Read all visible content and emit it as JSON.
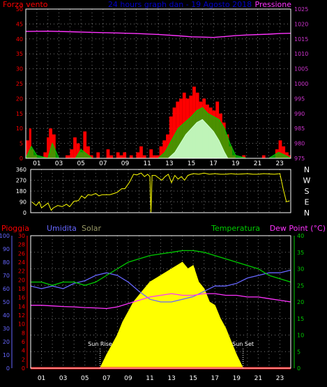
{
  "chart_data": [
    {
      "type": "line",
      "title": "24 hours graph dan - 19 Agosto 2018",
      "left_label": "Forza vento",
      "right_label": "Pressione",
      "colors": {
        "wind": "#ff0000",
        "gust": "#00cc00",
        "calm": "#ccffcc",
        "pressure": "#ff33ff"
      },
      "left_ticks": [
        "0",
        "5",
        "10",
        "15",
        "20",
        "25",
        "30",
        "35",
        "40",
        "45",
        "50"
      ],
      "right_ticks": [
        "975",
        "980",
        "985",
        "990",
        "995",
        "1000",
        "1005",
        "1010",
        "1015",
        "1020",
        "1025"
      ],
      "x_ticks": [
        "01",
        "03",
        "05",
        "07",
        "09",
        "11",
        "13",
        "15",
        "17",
        "19",
        "21",
        "23"
      ],
      "left_range": [
        0,
        50
      ],
      "right_range": [
        975,
        1025
      ],
      "hour_range": [
        0,
        24
      ],
      "series": [
        {
          "key": "wind",
          "x": [
            0,
            0.3,
            0.5,
            0.7,
            1.0,
            1.3,
            1.6,
            1.9,
            2.1,
            2.4,
            2.7,
            3.0,
            3.3,
            3.6,
            4.0,
            4.3,
            4.6,
            4.9,
            5.2,
            5.5,
            5.8,
            6.1,
            6.4,
            6.7,
            7.0,
            7.3,
            7.6,
            7.9,
            8.2,
            8.5,
            8.8,
            9.1,
            9.4,
            9.7,
            10.0,
            10.3,
            10.6,
            10.9,
            11.2,
            11.5,
            11.8,
            12.1,
            12.4,
            12.7,
            13.0,
            13.3,
            13.6,
            13.9,
            14.2,
            14.5,
            14.8,
            15.1,
            15.4,
            15.7,
            16.0,
            16.3,
            16.6,
            16.9,
            17.2,
            17.5,
            17.8,
            18.1,
            18.4,
            18.7,
            19.0,
            19.3,
            19.6,
            19.9,
            20.2,
            20.5,
            20.8,
            21.1,
            21.4,
            21.7,
            22.0,
            22.3,
            22.6,
            22.9,
            23.2,
            23.5,
            23.8,
            24.0
          ],
          "y": [
            1,
            6,
            10,
            3,
            1,
            0,
            0,
            2,
            7,
            10,
            8,
            0,
            0,
            0,
            1,
            3,
            7,
            5,
            2,
            9,
            4,
            1,
            0,
            2,
            0,
            0,
            3,
            1,
            0,
            2,
            1,
            2,
            0,
            1,
            0,
            2,
            4,
            1,
            0,
            3,
            1,
            1,
            4,
            6,
            8,
            14,
            17,
            19,
            20,
            22,
            20,
            21,
            24,
            22,
            19,
            20,
            18,
            17,
            16,
            19,
            15,
            12,
            8,
            4,
            1,
            0,
            0,
            1,
            0,
            0,
            0,
            0,
            0,
            1,
            0,
            0,
            0,
            3,
            6,
            4,
            2,
            1
          ]
        },
        {
          "key": "gust",
          "x": [
            0,
            0.5,
            1.0,
            2.0,
            2.4,
            3.0,
            4.5,
            5.0,
            6.0,
            8.0,
            10.0,
            12.0,
            12.6,
            13.2,
            13.8,
            14.4,
            15.0,
            15.5,
            16.0,
            16.5,
            17.0,
            17.5,
            18.0,
            18.5,
            19.0,
            20.0,
            22.0,
            22.9,
            23.5,
            24.0
          ],
          "y": [
            0,
            4,
            1,
            0,
            5,
            0,
            0,
            3,
            0,
            0,
            0,
            0,
            2,
            6,
            10,
            12,
            14,
            16,
            17,
            15,
            14,
            13,
            10,
            5,
            1,
            0,
            0,
            2,
            1,
            0
          ],
          "fill": true
        },
        {
          "key": "calm",
          "x": [
            0,
            12.9,
            13.5,
            14.0,
            14.5,
            15.0,
            15.5,
            16.0,
            16.5,
            17.0,
            17.5,
            18.0,
            18.3,
            24.0
          ],
          "y": [
            0,
            0,
            2,
            5,
            8,
            10,
            12,
            13,
            11,
            9,
            6,
            2,
            0,
            0
          ],
          "fill": true
        },
        {
          "key": "pressure",
          "x": [
            0,
            2,
            4,
            6,
            8,
            10,
            12,
            14,
            15,
            16,
            17,
            18,
            19,
            20,
            22,
            23,
            24
          ],
          "y": [
            1017.5,
            1017.6,
            1017.4,
            1017.2,
            1017.0,
            1016.8,
            1016.5,
            1016.0,
            1015.7,
            1015.6,
            1015.5,
            1015.8,
            1016.1,
            1016.3,
            1016.6,
            1016.8,
            1016.9
          ]
        }
      ]
    },
    {
      "type": "line",
      "title": "",
      "left_ticks": [
        "0",
        "90",
        "180",
        "270",
        "360"
      ],
      "left_range": [
        0,
        360
      ],
      "hour_range": [
        0,
        24
      ],
      "compass_labels": [
        "N",
        "W",
        "S",
        "E",
        "N"
      ],
      "colors": {
        "direction": "#ffff00"
      },
      "series": [
        {
          "key": "direction",
          "x": [
            0.1,
            0.5,
            0.8,
            1.0,
            1.3,
            1.6,
            1.9,
            2.1,
            2.5,
            2.9,
            3.3,
            3.6,
            4.0,
            4.4,
            4.7,
            5.0,
            5.3,
            5.6,
            6.0,
            6.3,
            6.6,
            7.0,
            7.3,
            7.7,
            8.0,
            8.4,
            8.7,
            9.1,
            9.5,
            9.8,
            10.2,
            10.5,
            10.8,
            11.0,
            11.1,
            11.2,
            11.5,
            11.8,
            12.1,
            12.4,
            12.7,
            13.0,
            13.3,
            13.6,
            13.9,
            14.2,
            14.5,
            14.8,
            15.1,
            15.5,
            16.0,
            16.5,
            17.0,
            17.5,
            18.0,
            18.5,
            19.0,
            19.5,
            20.0,
            20.5,
            21.0,
            21.5,
            22.0,
            22.5,
            23.0,
            23.3,
            23.6,
            23.9
          ],
          "y": [
            90,
            60,
            90,
            40,
            60,
            80,
            20,
            40,
            60,
            50,
            70,
            50,
            95,
            100,
            140,
            120,
            150,
            145,
            160,
            140,
            150,
            150,
            150,
            160,
            170,
            200,
            200,
            250,
            320,
            315,
            330,
            300,
            320,
            300,
            0,
            310,
            310,
            290,
            270,
            300,
            320,
            250,
            310,
            280,
            300,
            270,
            310,
            320,
            325,
            320,
            330,
            320,
            325,
            320,
            320,
            325,
            320,
            322,
            325,
            320,
            320,
            325,
            322,
            320,
            325,
            200,
            90,
            100
          ]
        }
      ]
    },
    {
      "type": "area",
      "labels": {
        "rain": "Pioggia",
        "humidity": "Umidita",
        "solar": "Solar",
        "temperature": "Temperatura",
        "dewpoint": "Dew Point (°C)",
        "sunrise": "Sun Rise",
        "sunset": "Sun Set"
      },
      "colors": {
        "rain": "#ff0000",
        "humidity": "#6666ff",
        "solar": "#ffff00",
        "solar_label": "#999966",
        "temperature": "#00cc00",
        "dewpoint": "#ff33ff"
      },
      "rain_ticks": [
        "0",
        "2",
        "4",
        "6",
        "8",
        "10",
        "12",
        "14",
        "16",
        "18",
        "20",
        "22",
        "24",
        "26",
        "28",
        "30"
      ],
      "humidity_ticks": [
        "0",
        "10",
        "20",
        "30",
        "40",
        "50",
        "60",
        "70",
        "80",
        "90",
        "100"
      ],
      "temp_ticks": [
        "0",
        "5",
        "10",
        "15",
        "20",
        "25",
        "30",
        "35",
        "40"
      ],
      "x_ticks": [
        "01",
        "03",
        "05",
        "07",
        "09",
        "11",
        "13",
        "15",
        "17",
        "19",
        "21",
        "23"
      ],
      "rain_range": [
        0,
        30
      ],
      "humidity_range": [
        0,
        100
      ],
      "temp_range": [
        0,
        40
      ],
      "hour_range": [
        0,
        24
      ],
      "sunrise_hour": 6.4,
      "sunset_hour": 19.6,
      "series": [
        {
          "key": "humidity",
          "x": [
            0,
            1,
            2,
            3,
            4,
            5,
            6,
            7,
            8,
            9,
            10,
            11,
            12,
            13,
            14,
            15,
            16,
            17,
            18,
            19,
            20,
            21,
            22,
            23,
            24
          ],
          "y": [
            62,
            60,
            62,
            60,
            64,
            66,
            70,
            72,
            70,
            65,
            58,
            52,
            50,
            50,
            52,
            54,
            58,
            62,
            62,
            64,
            68,
            70,
            72,
            72,
            74
          ]
        },
        {
          "key": "temperature",
          "x": [
            0,
            1,
            2,
            3,
            4,
            5,
            6,
            7,
            8,
            9,
            10,
            11,
            12,
            13,
            14,
            15,
            16,
            17,
            18,
            19,
            20,
            21,
            22,
            23,
            24
          ],
          "y": [
            26,
            26,
            25,
            26,
            26,
            25,
            26,
            28,
            30,
            32,
            33,
            34,
            34.5,
            35,
            35.5,
            35.5,
            35,
            34,
            33,
            32,
            31,
            30,
            28,
            27,
            26
          ]
        },
        {
          "key": "dewpoint",
          "x": [
            0,
            1,
            2,
            3,
            4,
            5,
            6,
            7,
            8,
            9,
            10,
            11,
            12,
            13,
            14,
            15,
            16,
            17,
            18,
            19,
            20,
            21,
            22,
            23,
            24
          ],
          "y": [
            19,
            19,
            18.8,
            18.6,
            18.5,
            18.3,
            18.2,
            18,
            18.5,
            19.5,
            20.5,
            21.5,
            22,
            22.5,
            22,
            22,
            22.5,
            22.5,
            22,
            22,
            21.5,
            21.5,
            21,
            20.5,
            20
          ]
        },
        {
          "key": "solar",
          "x": [
            6.4,
            7,
            7.5,
            8,
            8.5,
            9,
            9.5,
            10,
            10.5,
            11,
            11.5,
            12,
            12.5,
            13,
            13.5,
            14,
            14.5,
            15,
            15.5,
            16,
            16.5,
            17,
            17.5,
            18,
            18.5,
            19,
            19.6
          ],
          "y": [
            0,
            4,
            7,
            10,
            14,
            17,
            20,
            22,
            24,
            26,
            27,
            28,
            29,
            30,
            31,
            32,
            30,
            31,
            26,
            24,
            20,
            19,
            15,
            12,
            8,
            4,
            0
          ],
          "fill": true
        },
        {
          "key": "rain",
          "x": [
            0,
            24
          ],
          "y": [
            0,
            0
          ]
        }
      ]
    }
  ]
}
